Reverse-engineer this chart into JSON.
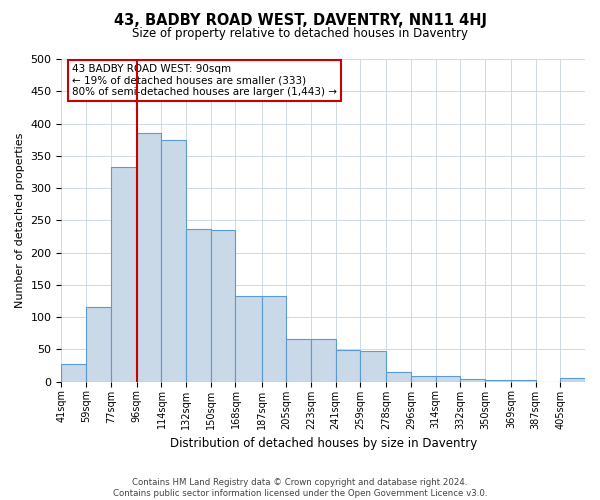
{
  "title": "43, BADBY ROAD WEST, DAVENTRY, NN11 4HJ",
  "subtitle": "Size of property relative to detached houses in Daventry",
  "xlabel": "Distribution of detached houses by size in Daventry",
  "ylabel": "Number of detached properties",
  "footer_line1": "Contains HM Land Registry data © Crown copyright and database right 2024.",
  "footer_line2": "Contains public sector information licensed under the Open Government Licence v3.0.",
  "bar_labels": [
    "41sqm",
    "59sqm",
    "77sqm",
    "96sqm",
    "114sqm",
    "132sqm",
    "150sqm",
    "168sqm",
    "187sqm",
    "205sqm",
    "223sqm",
    "241sqm",
    "259sqm",
    "278sqm",
    "296sqm",
    "314sqm",
    "332sqm",
    "350sqm",
    "369sqm",
    "387sqm",
    "405sqm"
  ],
  "bar_values": [
    27,
    116,
    332,
    385,
    375,
    236,
    235,
    132,
    132,
    66,
    66,
    49,
    48,
    15,
    9,
    9,
    4,
    2,
    2,
    0,
    6
  ],
  "bar_color": "#c9d9e8",
  "bar_edgecolor": "#5b9bd5",
  "ylim": [
    0,
    500
  ],
  "yticks": [
    0,
    50,
    100,
    150,
    200,
    250,
    300,
    350,
    400,
    450,
    500
  ],
  "property_line_x": 96,
  "red_line_color": "#cc0000",
  "background_color": "#ffffff",
  "grid_color": "#c8d4e0",
  "annotation_text_line1": "43 BADBY ROAD WEST: 90sqm",
  "annotation_text_line2": "← 19% of detached houses are smaller (333)",
  "annotation_text_line3": "80% of semi-detached houses are larger (1,443) →"
}
